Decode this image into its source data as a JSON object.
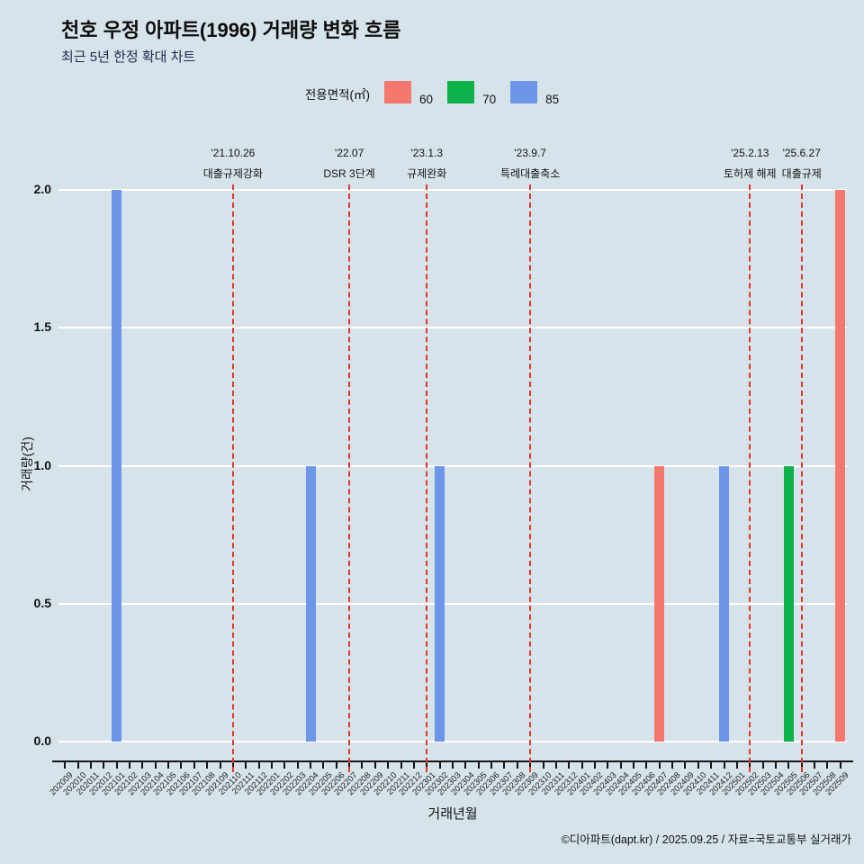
{
  "title": "천호 우정 아파트(1996) 거래량 변화 흐름",
  "subtitle": "최근 5년 한정 확대 차트",
  "legend": {
    "label": "전용면적(㎡)",
    "items": [
      {
        "label": "60",
        "color": "#f4786e"
      },
      {
        "label": "70",
        "color": "#0db24a"
      },
      {
        "label": "85",
        "color": "#6d96e8"
      }
    ]
  },
  "footer": "©디아파트(dapt.kr) / 2025.09.25 / 자료=국토교통부 실거래가",
  "colors": {
    "background": "#d6e3ea",
    "gridline": "#ffffff",
    "event_line": "#e5352b",
    "axis": "#141414"
  },
  "chart_data": {
    "type": "bar",
    "title": "천호 우정 아파트(1996) 거래량 변화 흐름",
    "subtitle": "최근 5년 한정 확대 차트",
    "xlabel": "거래년월",
    "ylabel": "거래량(건)",
    "ylim": [
      0,
      2.0
    ],
    "yticks": [
      0.0,
      0.5,
      1.0,
      1.5,
      2.0
    ],
    "grid": "horizontal white gridlines",
    "legend_position": "top-center",
    "categories": [
      "202009",
      "202010",
      "202011",
      "202012",
      "202101",
      "202102",
      "202103",
      "202104",
      "202105",
      "202106",
      "202107",
      "202108",
      "202109",
      "202110",
      "202111",
      "202112",
      "202201",
      "202202",
      "202203",
      "202204",
      "202205",
      "202206",
      "202207",
      "202208",
      "202209",
      "202210",
      "202211",
      "202212",
      "202301",
      "202302",
      "202303",
      "202304",
      "202305",
      "202306",
      "202307",
      "202308",
      "202309",
      "202310",
      "202311",
      "202312",
      "202401",
      "202402",
      "202403",
      "202404",
      "202405",
      "202406",
      "202407",
      "202408",
      "202409",
      "202410",
      "202411",
      "202412",
      "202501",
      "202502",
      "202503",
      "202504",
      "202505",
      "202506",
      "202507",
      "202508",
      "202509"
    ],
    "series": [
      {
        "name": "60",
        "color": "#f4786e",
        "points": [
          {
            "month": "202407",
            "value": 1
          },
          {
            "month": "202509",
            "value": 2
          }
        ]
      },
      {
        "name": "70",
        "color": "#0db24a",
        "points": [
          {
            "month": "202505",
            "value": 1
          }
        ]
      },
      {
        "name": "85",
        "color": "#6d96e8",
        "points": [
          {
            "month": "202101",
            "value": 2
          },
          {
            "month": "202204",
            "value": 1
          },
          {
            "month": "202302",
            "value": 1
          },
          {
            "month": "202412",
            "value": 1
          }
        ]
      }
    ],
    "events": [
      {
        "month": "202110",
        "date": "'21.10.26",
        "label": "대출규제강화"
      },
      {
        "month": "202207",
        "date": "'22.07",
        "label": "DSR 3단계"
      },
      {
        "month": "202301",
        "date": "'23.1.3",
        "label": "규제완화"
      },
      {
        "month": "202309",
        "date": "'23.9.7",
        "label": "특례대출축소"
      },
      {
        "month": "202502",
        "date": "'25.2.13",
        "label": "토허제 해제"
      },
      {
        "month": "202506",
        "date": "'25.6.27",
        "label": "대출규제"
      }
    ]
  }
}
